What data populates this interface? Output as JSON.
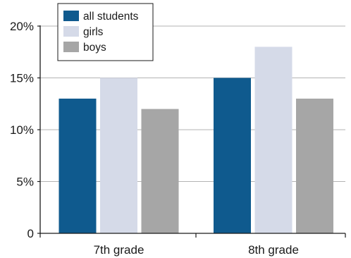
{
  "chart_data": {
    "type": "bar",
    "categories": [
      "7th grade",
      "8th grade"
    ],
    "series": [
      {
        "name": "all students",
        "values": [
          13,
          15
        ],
        "color": "#0f5a8e"
      },
      {
        "name": "girls",
        "values": [
          15,
          18
        ],
        "color": "#d5dae8"
      },
      {
        "name": "boys",
        "values": [
          12,
          13
        ],
        "color": "#a6a6a6"
      }
    ],
    "yticks": [
      {
        "value": 0,
        "label": "0"
      },
      {
        "value": 5,
        "label": "5%"
      },
      {
        "value": 10,
        "label": "10%"
      },
      {
        "value": 15,
        "label": "15%"
      },
      {
        "value": 20,
        "label": "20%"
      }
    ],
    "ylim": [
      0,
      20
    ],
    "grid": true,
    "legend_position": "top-left",
    "title": "",
    "xlabel": "",
    "ylabel": ""
  }
}
